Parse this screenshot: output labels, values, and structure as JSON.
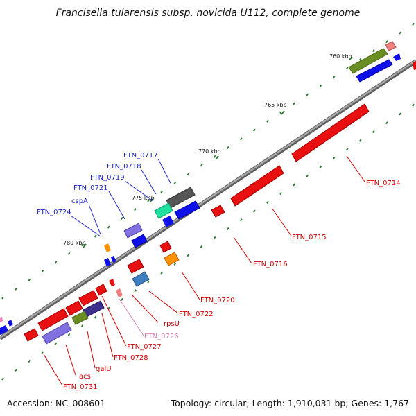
{
  "title": "Francisella tularensis subsp. novicida U112, complete genome",
  "footer": {
    "accession": "Accession: NC_008601",
    "summary": "Topology: circular; Length: 1,910,031 bp; Genes: 1,767"
  },
  "colors": {
    "backbone": "#808080",
    "tick": "#2e7d32",
    "label_forward": "#1b24c8",
    "label_reverse": "#d00000",
    "label_pseudo": "#e080b8"
  },
  "kbp_ticks": [
    {
      "label": "760 kbp"
    },
    {
      "label": "765 kbp"
    },
    {
      "label": "770 kbp"
    },
    {
      "label": "775 kbp"
    },
    {
      "label": "780 kbp"
    }
  ],
  "gene_labels": [
    {
      "name": "FTN_0717",
      "strand": "forward"
    },
    {
      "name": "FTN_0718",
      "strand": "forward"
    },
    {
      "name": "FTN_0719",
      "strand": "forward"
    },
    {
      "name": "FTN_0721",
      "strand": "forward"
    },
    {
      "name": "cspA",
      "strand": "forward"
    },
    {
      "name": "FTN_0724",
      "strand": "forward"
    },
    {
      "name": "FTN_0714",
      "strand": "reverse"
    },
    {
      "name": "FTN_0715",
      "strand": "reverse"
    },
    {
      "name": "FTN_0716",
      "strand": "reverse"
    },
    {
      "name": "FTN_0720",
      "strand": "reverse"
    },
    {
      "name": "FTN_0722",
      "strand": "reverse"
    },
    {
      "name": "rpsU",
      "strand": "reverse"
    },
    {
      "name": "FTN_0726",
      "strand": "pseudo"
    },
    {
      "name": "FTN_0727",
      "strand": "reverse"
    },
    {
      "name": "FTN_0728",
      "strand": "reverse"
    },
    {
      "name": "galU",
      "strand": "reverse"
    },
    {
      "name": "acs",
      "strand": "reverse"
    },
    {
      "name": "FTN_0731",
      "strand": "reverse"
    }
  ]
}
